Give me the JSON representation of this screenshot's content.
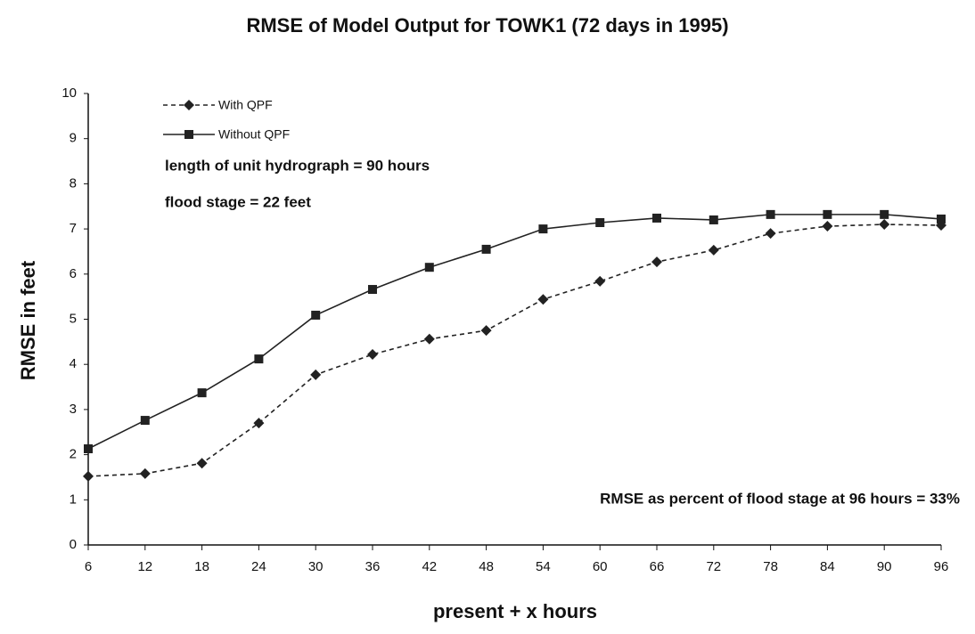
{
  "chart_data": {
    "type": "line",
    "title": "RMSE of Model Output for TOWK1 (72 days in 1995)",
    "x_label": "present + x hours",
    "y_label": "RMSE in feet",
    "annotations": [
      "length of unit hydrograph = 90 hours",
      "flood stage = 22 feet",
      "RMSE as percent of flood stage at 96 hours = 33%"
    ],
    "x": [
      6,
      12,
      18,
      24,
      30,
      36,
      42,
      48,
      54,
      60,
      66,
      72,
      78,
      84,
      90,
      96
    ],
    "xlim": [
      6,
      96
    ],
    "xticks": [
      6,
      12,
      18,
      24,
      30,
      36,
      42,
      48,
      54,
      60,
      66,
      72,
      78,
      84,
      90,
      96
    ],
    "ylim": [
      0,
      10
    ],
    "yticks": [
      0,
      1,
      2,
      3,
      4,
      5,
      6,
      7,
      8,
      9,
      10
    ],
    "grid": false,
    "legend": "upper left",
    "series": [
      {
        "name": "With QPF",
        "color": "#222222",
        "dashed": true,
        "marker": "diamond",
        "values": [
          1.52,
          1.58,
          1.81,
          2.7,
          3.77,
          4.22,
          4.56,
          4.75,
          5.44,
          5.84,
          6.27,
          6.53,
          6.9,
          7.06,
          7.1,
          7.08
        ]
      },
      {
        "name": "Without QPF",
        "color": "#222222",
        "dashed": false,
        "marker": "square",
        "values": [
          2.13,
          2.76,
          3.37,
          4.12,
          5.09,
          5.66,
          6.15,
          6.55,
          7.0,
          7.14,
          7.24,
          7.2,
          7.32,
          7.32,
          7.32,
          7.22
        ]
      }
    ]
  }
}
